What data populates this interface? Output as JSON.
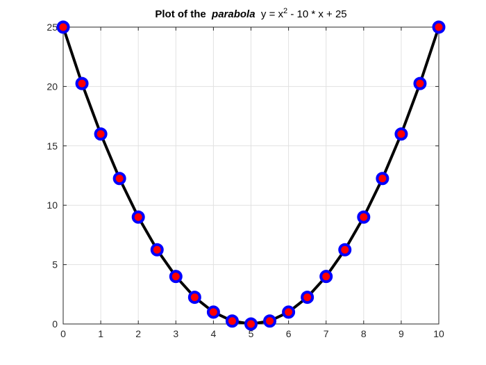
{
  "chart_data": {
    "type": "line",
    "title": {
      "part1": "Plot of the",
      "part2": "parabola",
      "part3": "y = x",
      "part4": "2",
      "part5": " - 10 * x + 25"
    },
    "xlabel": "",
    "ylabel": "",
    "xlim": [
      0,
      10
    ],
    "ylim": [
      0,
      25
    ],
    "xticks": [
      0,
      1,
      2,
      3,
      4,
      5,
      6,
      7,
      8,
      9,
      10
    ],
    "yticks": [
      0,
      5,
      10,
      15,
      20,
      25
    ],
    "grid": true,
    "series": [
      {
        "x": [
          0,
          0.5,
          1,
          1.5,
          2,
          2.5,
          3,
          3.5,
          4,
          4.5,
          5,
          5.5,
          6,
          6.5,
          7,
          7.5,
          8,
          8.5,
          9,
          9.5,
          10
        ],
        "values": [
          25,
          20.25,
          16,
          12.25,
          9,
          6.25,
          4,
          2.25,
          1,
          0.25,
          0,
          0.25,
          1,
          2.25,
          4,
          6.25,
          9,
          12.25,
          16,
          20.25,
          25
        ],
        "line_color": "#000000",
        "marker_edge_color": "#0000ff",
        "marker_face_color": "#ff0000"
      }
    ]
  }
}
